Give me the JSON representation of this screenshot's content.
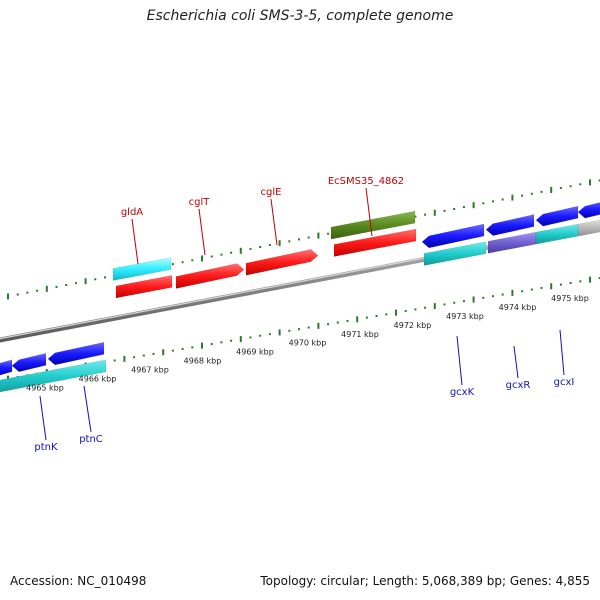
{
  "title": "Escherichia coli SMS-3-5, complete genome",
  "footer": {
    "accession": "Accession: NC_010498",
    "info": "Topology: circular; Length: 5,068,389 bp; Genes: 4,855"
  },
  "colors": {
    "backbone": "#888888",
    "tick": "#2a7a2a",
    "forward_label": "#c00000",
    "reverse_label": "#1010c0"
  },
  "tick_labels": [
    "4965 kbp",
    "4966 kbp",
    "4967 kbp",
    "4968 kbp",
    "4969 kbp",
    "4970 kbp",
    "4971 kbp",
    "4972 kbp",
    "4973 kbp",
    "4974 kbp",
    "4975 kbp"
  ],
  "genes_forward": [
    {
      "name": "gldA",
      "color": "#ff2020"
    },
    {
      "name": "cglT",
      "color": "#ff2020"
    },
    {
      "name": "cglE",
      "color": "#ff2020"
    },
    {
      "name": "EcSMS35_4862",
      "color": "#ff2020"
    }
  ],
  "genes_reverse": [
    {
      "name": "ptnK",
      "color": "#1a1aff"
    },
    {
      "name": "ptnC",
      "color": "#1a1aff"
    },
    {
      "name": "gcxK",
      "color": "#1a1aff"
    },
    {
      "name": "gcxR",
      "color": "#1a1aff"
    },
    {
      "name": "gcxI",
      "color": "#1a1aff"
    }
  ],
  "cog_colors": {
    "cyan": "#22cccc",
    "light_cyan": "#33eeff",
    "olive": "#5a8a20",
    "purple": "#7060d0",
    "gray": "#bbbbbb"
  }
}
